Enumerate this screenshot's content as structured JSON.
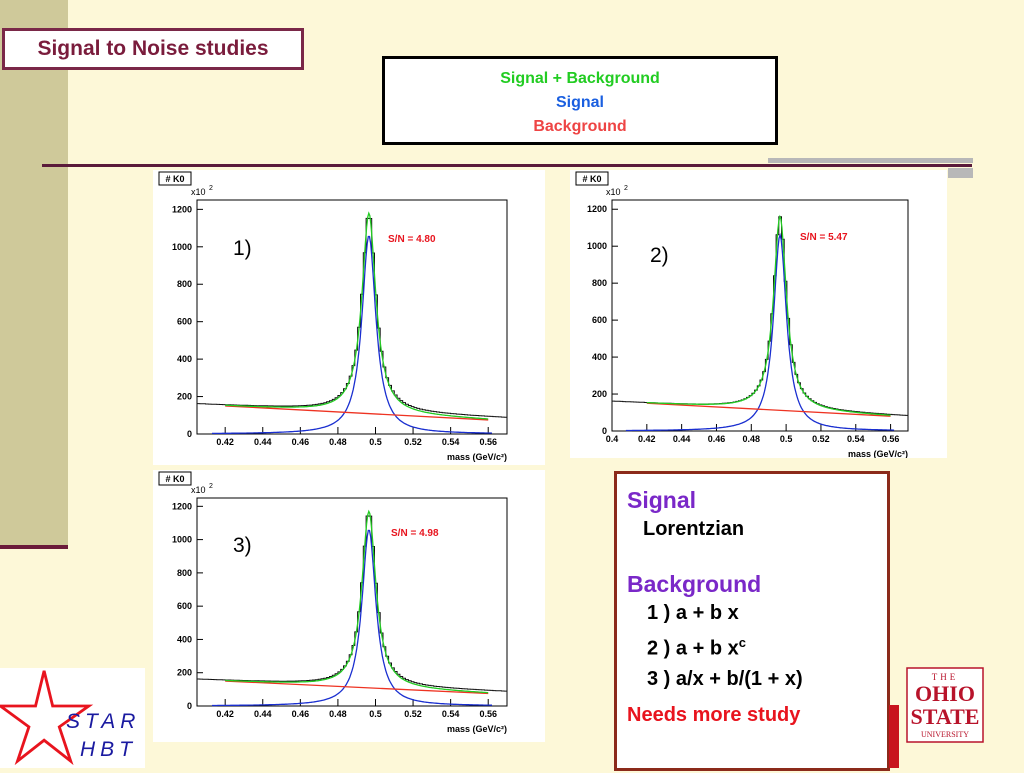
{
  "title": "Signal to Noise studies",
  "legend": {
    "sig_bkg": "Signal + Background",
    "signal": "Signal",
    "background": "Background",
    "colors": {
      "sig_bkg": "#22cc22",
      "signal": "#1a2fd0",
      "background": "#ee3322"
    }
  },
  "info": {
    "signal_heading": "Signal",
    "signal_model": "Lorentzian",
    "background_heading": "Background",
    "bkg1": "1 )  a + b x",
    "bkg2_base": "2 )  a + b x",
    "bkg2_sup": "c",
    "bkg3": "3 ) a/x  + b/(1 + x)",
    "note": "Needs more study"
  },
  "logos": {
    "star": "STAR HBT",
    "osu": "THE OHIO STATE UNIVERSITY"
  },
  "chart_data": [
    {
      "type": "line",
      "panel_label": "1)",
      "hist_title": "# K0",
      "y_exponent": "x10",
      "y_exponent_sup": "2",
      "sn_label": "S/N = 4.80",
      "xlabel": "mass (GeV/c²)",
      "xlim": [
        0.405,
        0.57
      ],
      "ylim": [
        0,
        1250
      ],
      "xticks": [
        0.42,
        0.44,
        0.46,
        0.48,
        0.5,
        0.52,
        0.54,
        0.56
      ],
      "xtick_labels": [
        "0.42",
        "0.44",
        "0.46",
        "0.48",
        "0.5",
        "0.52",
        "0.54",
        "0.56"
      ],
      "yticks": [
        0,
        200,
        400,
        600,
        800,
        1000,
        1200
      ],
      "ytick_labels": [
        "0",
        "200",
        "400",
        "600",
        "800",
        "1000",
        "1200"
      ],
      "peak_mass": 0.4965,
      "signal_peak": 1060,
      "total_peak": 1180,
      "width": 0.0045,
      "background_line": {
        "x": [
          0.42,
          0.56
        ],
        "y": [
          150,
          75
        ]
      },
      "data_baseline": {
        "x": [
          0.405,
          0.57
        ],
        "y": [
          160,
          85
        ]
      }
    },
    {
      "type": "line",
      "panel_label": "2)",
      "hist_title": "# K0",
      "y_exponent": "x10",
      "y_exponent_sup": "2",
      "sn_label": "S/N = 5.47",
      "xlabel": "mass (GeV/c²)",
      "xlim": [
        0.4,
        0.57
      ],
      "ylim": [
        0,
        1250
      ],
      "xticks": [
        0.4,
        0.42,
        0.44,
        0.46,
        0.48,
        0.5,
        0.52,
        0.54,
        0.56
      ],
      "xtick_labels": [
        "0.4",
        "0.42",
        "0.44",
        "0.46",
        "0.48",
        "0.5",
        "0.52",
        "0.54",
        "0.56"
      ],
      "yticks": [
        0,
        200,
        400,
        600,
        800,
        1000,
        1200
      ],
      "ytick_labels": [
        "0",
        "200",
        "400",
        "600",
        "800",
        "1000",
        "1200"
      ],
      "peak_mass": 0.4965,
      "signal_peak": 1060,
      "total_peak": 1160,
      "width": 0.0045,
      "background_line": {
        "x": [
          0.42,
          0.56
        ],
        "y": [
          150,
          80
        ]
      },
      "data_baseline": {
        "x": [
          0.4,
          0.57
        ],
        "y": [
          160,
          80
        ]
      }
    },
    {
      "type": "line",
      "panel_label": "3)",
      "hist_title": "# K0",
      "y_exponent": "x10",
      "y_exponent_sup": "2",
      "sn_label": "S/N = 4.98",
      "xlabel": "mass (GeV/c²)",
      "xlim": [
        0.405,
        0.57
      ],
      "ylim": [
        0,
        1250
      ],
      "xticks": [
        0.42,
        0.44,
        0.46,
        0.48,
        0.5,
        0.52,
        0.54,
        0.56
      ],
      "xtick_labels": [
        "0.42",
        "0.44",
        "0.46",
        "0.48",
        "0.5",
        "0.52",
        "0.54",
        "0.56"
      ],
      "yticks": [
        0,
        200,
        400,
        600,
        800,
        1000,
        1200
      ],
      "ytick_labels": [
        "0",
        "200",
        "400",
        "600",
        "800",
        "1000",
        "1200"
      ],
      "peak_mass": 0.4965,
      "signal_peak": 1060,
      "total_peak": 1170,
      "width": 0.0045,
      "background_line": {
        "x": [
          0.42,
          0.56
        ],
        "y": [
          150,
          75
        ]
      },
      "data_baseline": {
        "x": [
          0.405,
          0.57
        ],
        "y": [
          160,
          85
        ]
      }
    }
  ]
}
